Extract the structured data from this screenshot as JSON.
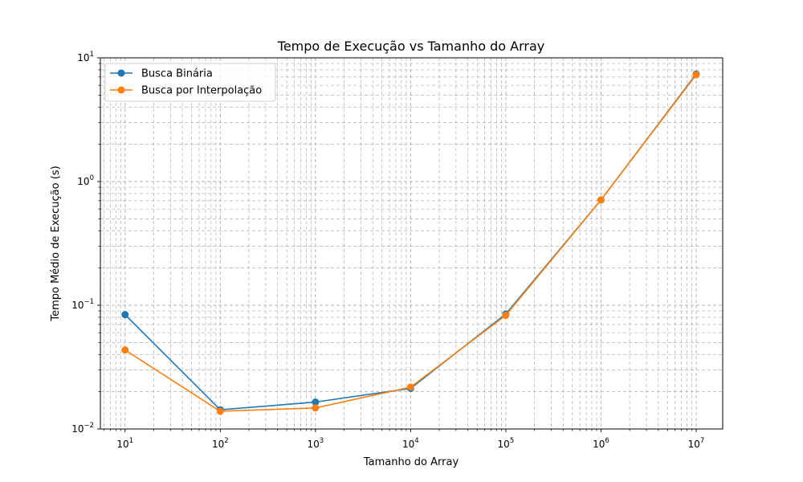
{
  "chart_data": {
    "type": "line",
    "title": "Tempo de Execução vs Tamanho do Array",
    "xlabel": "Tamanho do Array",
    "ylabel": "Tempo Médio de Execução (s)",
    "xscale": "log",
    "yscale": "log",
    "xlim": [
      5.5,
      19000000
    ],
    "ylim": [
      0.01,
      10
    ],
    "x_ticks": [
      {
        "base": "10",
        "exp": "1",
        "value": 10
      },
      {
        "base": "10",
        "exp": "2",
        "value": 100
      },
      {
        "base": "10",
        "exp": "3",
        "value": 1000
      },
      {
        "base": "10",
        "exp": "4",
        "value": 10000
      },
      {
        "base": "10",
        "exp": "5",
        "value": 100000
      },
      {
        "base": "10",
        "exp": "6",
        "value": 1000000
      },
      {
        "base": "10",
        "exp": "7",
        "value": 10000000
      }
    ],
    "y_ticks": [
      {
        "base": "10",
        "exp": "−2",
        "value": 0.01
      },
      {
        "base": "10",
        "exp": "−1",
        "value": 0.1
      },
      {
        "base": "10",
        "exp": "0",
        "value": 1
      },
      {
        "base": "10",
        "exp": "1",
        "value": 10
      }
    ],
    "grid": true,
    "grid_minor": true,
    "legend_position": "upper-left",
    "x": [
      10,
      100,
      1000,
      10000,
      100000,
      1000000,
      10000000
    ],
    "series": [
      {
        "name": "Busca Binária",
        "color": "#1f77b4",
        "marker": "circle",
        "values": [
          0.084,
          0.0143,
          0.0165,
          0.0213,
          0.085,
          0.71,
          7.4
        ]
      },
      {
        "name": "Busca por Interpolação",
        "color": "#ff7f0e",
        "marker": "circle",
        "values": [
          0.0435,
          0.0139,
          0.0148,
          0.0218,
          0.083,
          0.71,
          7.3
        ]
      }
    ]
  }
}
